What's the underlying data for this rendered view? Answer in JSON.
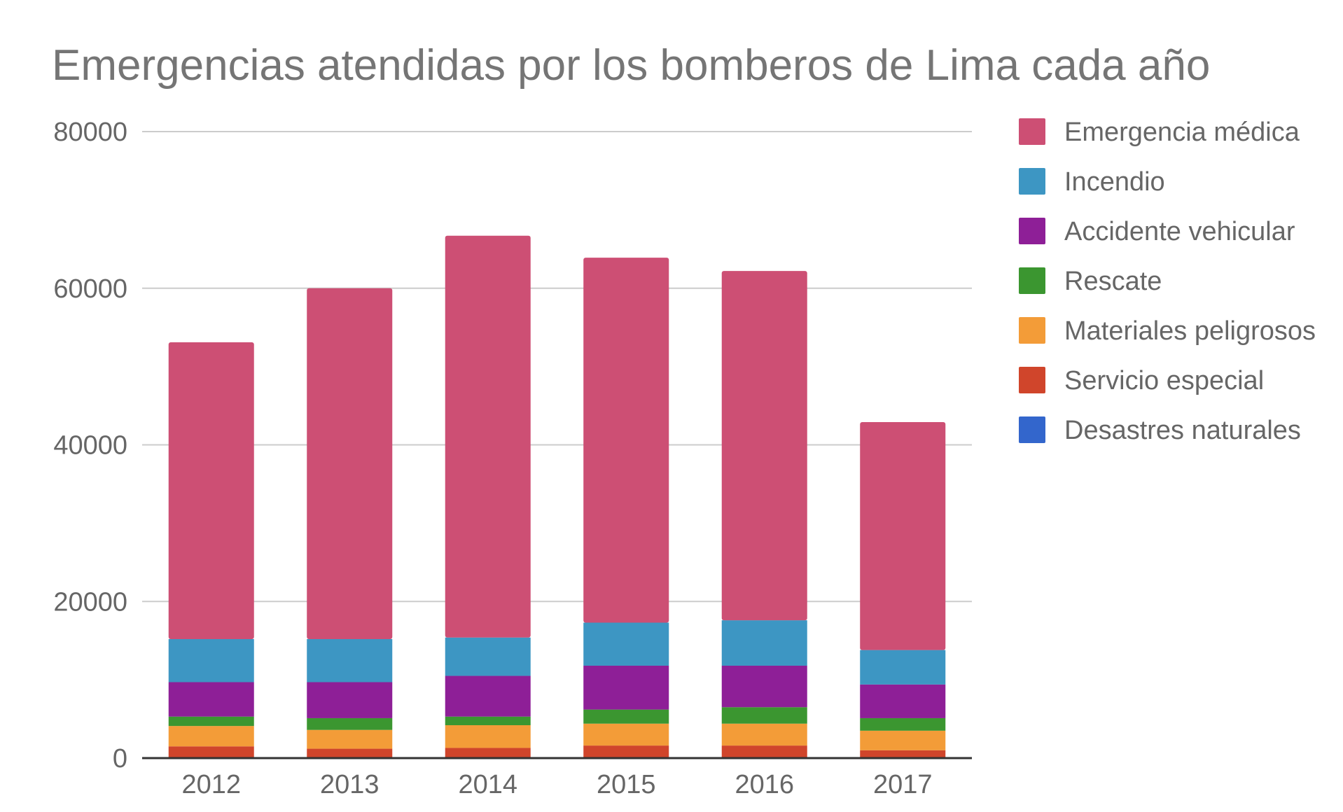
{
  "chart_data": {
    "type": "bar",
    "stacked": true,
    "title": "Emergencias atendidas por los bomberos de Lima cada año",
    "xlabel": "",
    "ylabel": "",
    "ylim": [
      0,
      80000
    ],
    "yticks": [
      "0",
      "20000",
      "40000",
      "60000",
      "80000"
    ],
    "grid": true,
    "legend_position": "right",
    "categories": [
      "2012",
      "2013",
      "2014",
      "2015",
      "2016",
      "2017"
    ],
    "series": [
      {
        "name": "Desastres naturales",
        "color": "#3366cc",
        "values": [
          100,
          100,
          100,
          100,
          100,
          100
        ]
      },
      {
        "name": "Servicio especial",
        "color": "#d0452b",
        "values": [
          1400,
          1100,
          1200,
          1500,
          1500,
          900
        ]
      },
      {
        "name": "Materiales peligrosos",
        "color": "#f39c38",
        "values": [
          2600,
          2400,
          2900,
          2800,
          2800,
          2500
        ]
      },
      {
        "name": "Rescate",
        "color": "#3b9630",
        "values": [
          1200,
          1500,
          1100,
          1800,
          2100,
          1600
        ]
      },
      {
        "name": "Accidente vehicular",
        "color": "#8e1f97",
        "values": [
          4400,
          4600,
          5200,
          5600,
          5300,
          4300
        ]
      },
      {
        "name": "Incendio",
        "color": "#3d96c3",
        "values": [
          5500,
          5500,
          4900,
          5500,
          5800,
          4400
        ]
      },
      {
        "name": "Emergencia médica",
        "color": "#cd4f74",
        "values": [
          37900,
          44800,
          51300,
          46600,
          44600,
          29100
        ]
      }
    ],
    "legend_order": [
      "Emergencia médica",
      "Incendio",
      "Accidente vehicular",
      "Rescate",
      "Materiales peligrosos",
      "Servicio especial",
      "Desastres naturales"
    ]
  }
}
